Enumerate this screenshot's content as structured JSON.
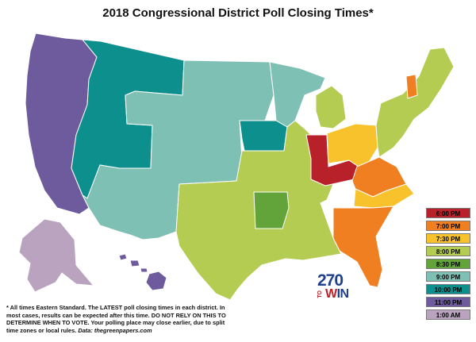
{
  "title": "2018 Congressional District Poll Closing Times*",
  "colors": {
    "6pm": "#b8202a",
    "7pm": "#f07f22",
    "730pm": "#f7c22c",
    "8pm": "#b4cc52",
    "830pm": "#62a33a",
    "9pm": "#7fc0b5",
    "10pm": "#0d8f8d",
    "11pm": "#6d5b9e",
    "1am": "#b9a3bf"
  },
  "legend": [
    {
      "label": "6:00 PM",
      "color_key": "6pm"
    },
    {
      "label": "7:00 PM",
      "color_key": "7pm"
    },
    {
      "label": "7:30 PM",
      "color_key": "730pm"
    },
    {
      "label": "8:00 PM",
      "color_key": "8pm"
    },
    {
      "label": "8:30 PM",
      "color_key": "830pm"
    },
    {
      "label": "9:00 PM",
      "color_key": "9pm"
    },
    {
      "label": "10:00 PM",
      "color_key": "10pm"
    },
    {
      "label": "11:00 PM",
      "color_key": "11pm"
    },
    {
      "label": "1:00 AM",
      "color_key": "1am"
    }
  ],
  "logo": {
    "number": "270",
    "to": "TO",
    "win_w": "W",
    "win_rest": "IN"
  },
  "footnote": {
    "body": "* All times Eastern Standard. The LATEST poll closing times in each district. In most cases, results can be expected after this time. DO NOT RELY ON THIS TO DETERMINE WHEN TO VOTE. Your polling place may close earlier, due to split time zones or local rules. ",
    "source": "Data: thegreenpapers.com"
  }
}
